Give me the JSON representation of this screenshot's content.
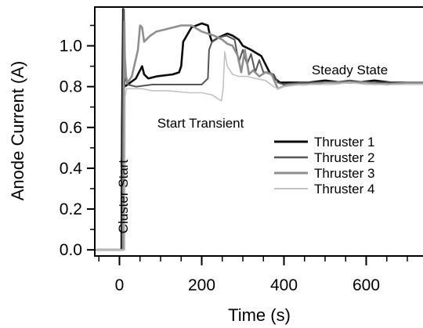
{
  "chart_data": {
    "type": "line",
    "title": "",
    "xlabel": "Time (s)",
    "ylabel": "Anode Current (A)",
    "xlim": [
      -60,
      740
    ],
    "ylim": [
      -0.03,
      1.19
    ],
    "xticks": [
      0,
      200,
      400,
      600
    ],
    "xminor": [
      -50,
      50,
      100,
      150,
      250,
      300,
      350,
      450,
      500,
      550,
      650,
      700
    ],
    "yticks": [
      {
        "value": 0.0,
        "label": "0.0"
      },
      {
        "value": 0.2,
        "label": "0.2"
      },
      {
        "value": 0.4,
        "label": "0.4"
      },
      {
        "value": 0.6,
        "label": "0.6"
      },
      {
        "value": 0.8,
        "label": "0.8"
      },
      {
        "value": 1.0,
        "label": "1.0"
      }
    ],
    "grid": false,
    "legend_position": "center-right",
    "annotations": [
      {
        "text": "Steady State",
        "x": 560,
        "y": 0.86,
        "anchor": "middle"
      },
      {
        "text": "Start Transient",
        "x": 92,
        "y": 0.6,
        "anchor": "start"
      },
      {
        "text": "Cluster Start",
        "x": 20,
        "y": 0.08,
        "anchor": "start",
        "rotate": -90
      }
    ],
    "series": [
      {
        "name": "Thruster 1",
        "color": "#0a0a0a",
        "width": 2.6,
        "x": [
          -55,
          5,
          6,
          9,
          10,
          11,
          12,
          20,
          40,
          55,
          60,
          70,
          90,
          130,
          145,
          150,
          155,
          175,
          200,
          215,
          220,
          225,
          240,
          262,
          275,
          290,
          300,
          320,
          345,
          365,
          378,
          390,
          420,
          460,
          500,
          540,
          580,
          620,
          660,
          700,
          740
        ],
        "y": [
          0.0,
          0.0,
          0.6,
          1.18,
          1.17,
          0.95,
          0.8,
          0.81,
          0.84,
          0.9,
          0.86,
          0.84,
          0.85,
          0.86,
          0.87,
          0.9,
          1.02,
          1.09,
          1.11,
          1.1,
          1.05,
          1.02,
          1.04,
          1.06,
          1.05,
          1.03,
          1.0,
          0.98,
          0.95,
          0.87,
          0.84,
          0.82,
          0.82,
          0.82,
          0.83,
          0.82,
          0.82,
          0.83,
          0.82,
          0.82,
          0.82
        ]
      },
      {
        "name": "Thruster 2",
        "color": "#555555",
        "width": 2.0,
        "x": [
          -55,
          7,
          8,
          10,
          11,
          13,
          20,
          40,
          80,
          120,
          170,
          200,
          215,
          218,
          225,
          240,
          260,
          280,
          290,
          300,
          310,
          320,
          330,
          340,
          350,
          362,
          375,
          385,
          400,
          440,
          480,
          520,
          560,
          600,
          640,
          680,
          720,
          740
        ],
        "y": [
          0.0,
          0.0,
          0.7,
          1.17,
          1.18,
          0.85,
          0.81,
          0.8,
          0.81,
          0.81,
          0.81,
          0.81,
          0.84,
          0.98,
          1.02,
          1.04,
          1.05,
          1.03,
          0.92,
          0.98,
          0.91,
          0.96,
          0.87,
          0.93,
          0.87,
          0.87,
          0.86,
          0.82,
          0.81,
          0.82,
          0.82,
          0.82,
          0.83,
          0.82,
          0.82,
          0.82,
          0.82,
          0.82
        ]
      },
      {
        "name": "Thruster 3",
        "color": "#8f8f8f",
        "width": 2.6,
        "x": [
          -55,
          9,
          10,
          12,
          13,
          16,
          20,
          30,
          45,
          50,
          55,
          60,
          75,
          90,
          110,
          130,
          150,
          175,
          200,
          230,
          250,
          262,
          275,
          288,
          296,
          305,
          315,
          325,
          340,
          355,
          370,
          385,
          410,
          450,
          500,
          550,
          600,
          650,
          700,
          740
        ],
        "y": [
          0.0,
          0.0,
          0.55,
          1.12,
          0.95,
          0.85,
          0.82,
          0.85,
          0.98,
          1.1,
          1.09,
          1.02,
          1.05,
          1.07,
          1.08,
          1.09,
          1.1,
          1.1,
          1.07,
          1.05,
          1.03,
          1.01,
          1.0,
          0.95,
          0.87,
          0.98,
          0.86,
          0.88,
          0.85,
          0.87,
          0.86,
          0.79,
          0.81,
          0.81,
          0.82,
          0.82,
          0.82,
          0.81,
          0.82,
          0.82
        ]
      },
      {
        "name": "Thruster 4",
        "color": "#c2c2c2",
        "width": 1.6,
        "x": [
          -55,
          13,
          14,
          17,
          20,
          35,
          55,
          80,
          120,
          170,
          200,
          225,
          240,
          248,
          252,
          256,
          262,
          275,
          290,
          310,
          330,
          355,
          375,
          385,
          400,
          440,
          480,
          520,
          560,
          600,
          640,
          680,
          720,
          740
        ],
        "y": [
          0.0,
          0.0,
          0.75,
          0.79,
          0.79,
          0.79,
          0.79,
          0.78,
          0.78,
          0.77,
          0.77,
          0.76,
          0.74,
          0.73,
          0.79,
          0.97,
          0.9,
          0.86,
          0.85,
          0.85,
          0.84,
          0.83,
          0.8,
          0.79,
          0.8,
          0.81,
          0.81,
          0.81,
          0.82,
          0.81,
          0.81,
          0.81,
          0.81,
          0.81
        ]
      }
    ]
  }
}
